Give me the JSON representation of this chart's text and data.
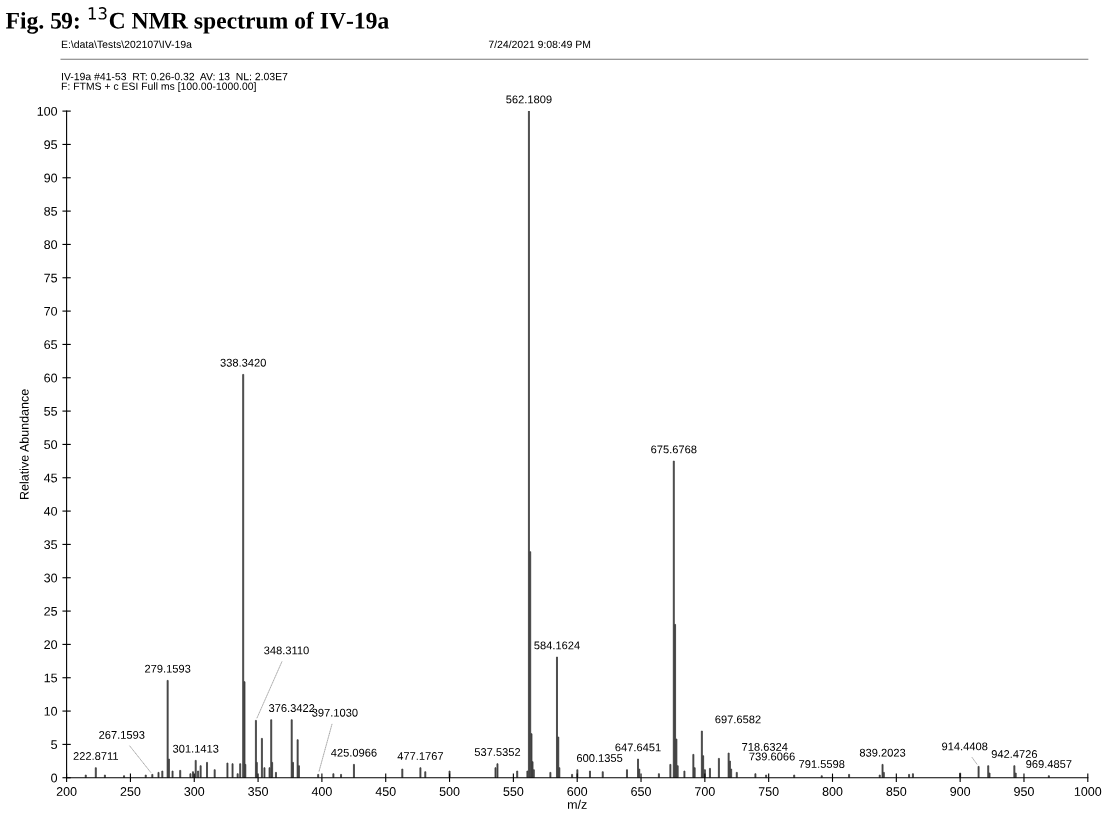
{
  "chart_data": {
    "type": "bar",
    "title": "Fig. 59: $^{13}$C NMR spectrum of IV-19a",
    "subtitle": "IV-19a #41-53  RT: 0.26-0.32  AV: 13  NL: 2.03E7\nF: FTMS + c ESI Full ms [100.00-1000.00]",
    "xlabel": "m/z",
    "ylabel": "Relative Abundance",
    "x": [
      215,
      222.8711,
      230,
      245,
      262,
      267.1593,
      272,
      275,
      279.1593,
      280.16,
      283,
      289,
      297,
      299,
      301.1413,
      303,
      305,
      310,
      316,
      326,
      330,
      334,
      336,
      338.342,
      339.35,
      340,
      348.311,
      349,
      353,
      355,
      359,
      360.3,
      361,
      364,
      376.3422,
      377.35,
      381,
      382,
      397.103,
      409,
      415,
      425.0966,
      463,
      477.1767,
      481,
      500,
      536,
      537.5352,
      553,
      561,
      562.1809,
      563.18,
      564.19,
      565,
      566,
      579,
      584.1624,
      585.17,
      586,
      596,
      600.1355,
      610,
      620,
      639,
      647.6451,
      648.6,
      664,
      673,
      675.6768,
      676.68,
      677.7,
      678.7,
      684,
      691,
      692,
      697.6582,
      698.66,
      700,
      704,
      711,
      718.6324,
      719.64,
      720.6,
      725,
      739.6066,
      748,
      770,
      791.5598,
      813,
      837,
      839.2023,
      840.2,
      860,
      863,
      900,
      914.4408,
      922,
      923,
      942.4726,
      943.5,
      969.4857
    ],
    "values": [
      0.4,
      1.5,
      0.4,
      0.3,
      0.4,
      0.5,
      0.8,
      1.0,
      14.6,
      2.8,
      1.0,
      1.1,
      0.6,
      0.9,
      2.6,
      1.0,
      1.8,
      2.3,
      1.2,
      2.2,
      2.1,
      0.6,
      2.1,
      60.5,
      14.4,
      2.0,
      8.6,
      2.3,
      5.9,
      1.5,
      1.5,
      8.7,
      2.3,
      0.8,
      8.7,
      2.3,
      5.7,
      1.8,
      0.5,
      0.6,
      0.5,
      2.0,
      1.3,
      1.5,
      0.9,
      1.0,
      1.5,
      2.1,
      1.0,
      1.0,
      100,
      33.9,
      6.6,
      2.4,
      1.2,
      0.8,
      18.1,
      6.1,
      1.5,
      0.5,
      1.2,
      1.0,
      0.9,
      1.2,
      2.8,
      1.3,
      0.6,
      2.0,
      47.5,
      23.0,
      5.8,
      1.8,
      1.0,
      3.5,
      1.5,
      7.0,
      3.3,
      1.2,
      1.4,
      2.9,
      3.7,
      2.5,
      1.3,
      0.8,
      0.6,
      0.4,
      0.4,
      0.3,
      0.5,
      0.4,
      2.0,
      0.8,
      0.5,
      0.6,
      0.7,
      1.7,
      1.8,
      0.7,
      1.8,
      0.7,
      0.3
    ],
    "color": "#404040",
    "xlim": [
      200,
      1000
    ],
    "xticks": [
      200,
      250,
      300,
      350,
      400,
      450,
      500,
      550,
      600,
      650,
      700,
      750,
      800,
      850,
      900,
      950,
      1000
    ],
    "ylim": [
      0,
      100
    ],
    "yticks": [
      0,
      5,
      10,
      15,
      20,
      25,
      30,
      35,
      40,
      45,
      50,
      55,
      60,
      65,
      70,
      75,
      80,
      85,
      90,
      95,
      100
    ],
    "grid": false,
    "legend": false,
    "annotations": [
      "E:\\data\\Tests\\202107\\IV-19a",
      "7/24/2021 9:08:49 PM",
      {
        "text": "222.8711",
        "x": 222.8711,
        "y": 1.5
      },
      {
        "text": "267.1593",
        "x": 267.1593,
        "y": 0.5
      },
      {
        "text": "279.1593",
        "x": 279.1593,
        "y": 14.6
      },
      {
        "text": "301.1413",
        "x": 301.1413,
        "y": 2.6
      },
      {
        "text": "338.3420",
        "x": 338.342,
        "y": 60.5
      },
      {
        "text": "348.3110",
        "x": 348.311,
        "y": 8.6
      },
      {
        "text": "376.3422",
        "x": 376.3422,
        "y": 8.7
      },
      {
        "text": "397.1030",
        "x": 397.103,
        "y": 0.5
      },
      {
        "text": "425.0966",
        "x": 425.0966,
        "y": 2.0
      },
      {
        "text": "477.1767",
        "x": 477.1767,
        "y": 1.5
      },
      {
        "text": "537.5352",
        "x": 537.5352,
        "y": 2.1
      },
      {
        "text": "562.1809",
        "x": 562.1809,
        "y": 100
      },
      {
        "text": "584.1624",
        "x": 584.1624,
        "y": 18.1
      },
      {
        "text": "600.1355",
        "x": 600.1355,
        "y": 1.2
      },
      {
        "text": "647.6451",
        "x": 647.6451,
        "y": 2.8
      },
      {
        "text": "675.6768",
        "x": 675.6768,
        "y": 47.5
      },
      {
        "text": "697.6582",
        "x": 697.6582,
        "y": 7.0
      },
      {
        "text": "718.6324",
        "x": 718.6324,
        "y": 3.7
      },
      {
        "text": "739.6066",
        "x": 739.6066,
        "y": 0.6
      },
      {
        "text": "791.5598",
        "x": 791.5598,
        "y": 0.3
      },
      {
        "text": "839.2023",
        "x": 839.2023,
        "y": 2.0
      },
      {
        "text": "914.4408",
        "x": 914.4408,
        "y": 1.7
      },
      {
        "text": "942.4726",
        "x": 942.4726,
        "y": 1.8
      },
      {
        "text": "969.4857",
        "x": 969.4857,
        "y": 0.3
      }
    ]
  }
}
